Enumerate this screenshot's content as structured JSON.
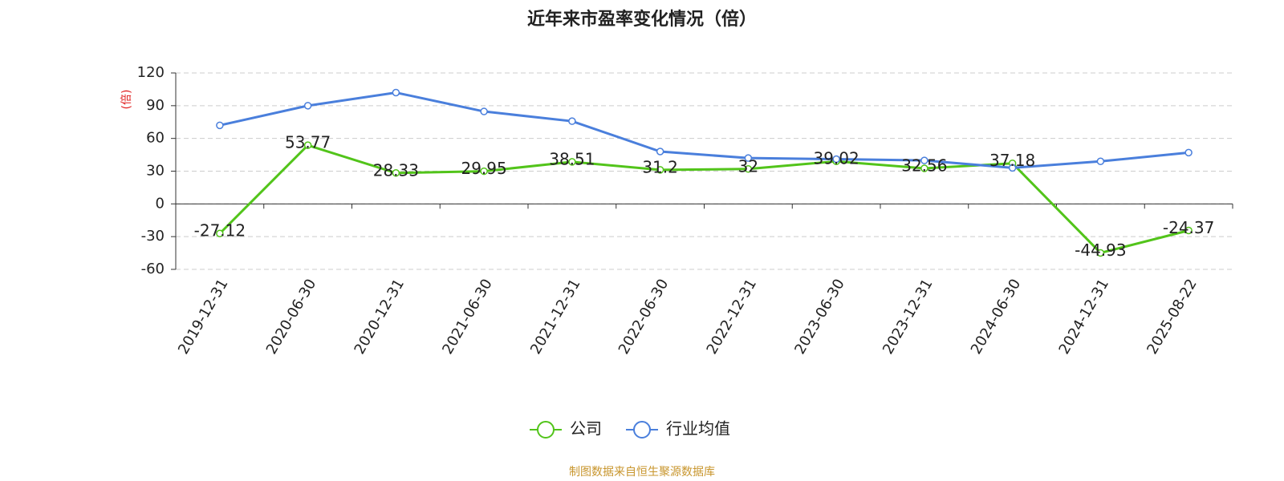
{
  "chart_data": {
    "type": "line",
    "title": "近年来市盈率变化情况（倍）",
    "y_label": "(倍)",
    "source": "制图数据来自恒生聚源数据库",
    "categories": [
      "2019-12-31",
      "2020-06-30",
      "2020-12-31",
      "2021-06-30",
      "2021-12-31",
      "2022-06-30",
      "2022-12-31",
      "2023-06-30",
      "2023-12-31",
      "2024-06-30",
      "2024-12-31",
      "2025-08-22"
    ],
    "series": [
      {
        "name": "公司",
        "color": "#52c41a",
        "values": [
          -27.12,
          53.77,
          28.33,
          29.95,
          38.51,
          31.2,
          32,
          39.02,
          32.56,
          37.18,
          -44.93,
          -24.37
        ],
        "show_labels": true
      },
      {
        "name": "行业均值",
        "color": "#4a7fdc",
        "values": [
          72,
          90,
          102,
          84.7,
          75.8,
          48,
          42,
          41,
          39.8,
          33,
          39,
          47
        ],
        "show_labels": false
      }
    ],
    "ylim": [
      -60,
      120
    ],
    "yticks": [
      -60,
      -30,
      0,
      30,
      60,
      90,
      120
    ],
    "grid": true,
    "legend": "bottom"
  }
}
